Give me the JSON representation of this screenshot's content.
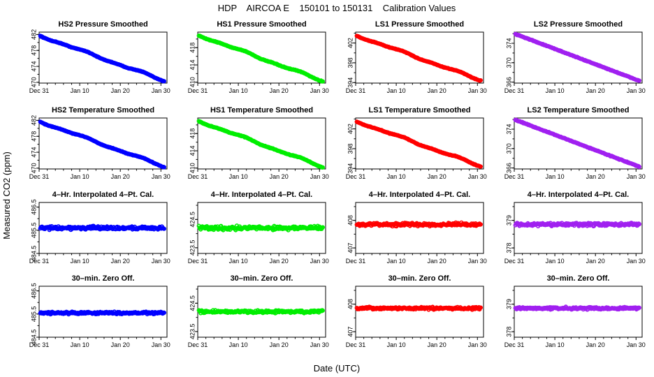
{
  "figure": {
    "title": "HDP    AIRCOA E    150101 to 150131    Calibration Values",
    "xlabel": "Date (UTC)",
    "ylabel": "Measured CO2 (ppm)"
  },
  "chart_data": [
    {
      "type": "line",
      "title": "HS2 Pressure Smoothed",
      "color": "#0000ff",
      "trend": "smooth",
      "start": 481.8,
      "end": 470.3,
      "noise": 0.15,
      "ylim": [
        469.8,
        482.6
      ],
      "yticks": [
        470,
        474,
        478,
        482
      ],
      "xticks": [
        "Dec 31",
        "Jan 10",
        "Jan 20",
        "Jan 30"
      ],
      "xlim": [
        0,
        31.5
      ]
    },
    {
      "type": "line",
      "title": "HS1 Pressure Smoothed",
      "color": "#00ee00",
      "trend": "smooth",
      "start": 421.0,
      "end": 410.2,
      "noise": 0.15,
      "ylim": [
        409.8,
        421.6
      ],
      "yticks": [
        410,
        414,
        418
      ],
      "xticks": [
        "Dec 31",
        "Jan 10",
        "Jan 20",
        "Jan 30"
      ],
      "xlim": [
        0,
        31.5
      ]
    },
    {
      "type": "line",
      "title": "LS1 Pressure Smoothed",
      "color": "#ff0000",
      "trend": "smooth",
      "start": 403.6,
      "end": 394.4,
      "noise": 0.12,
      "ylim": [
        393.9,
        404.2
      ],
      "yticks": [
        394,
        398,
        402
      ],
      "xticks": [
        "Dec 31",
        "Jan 10",
        "Jan 20",
        "Jan 30"
      ],
      "xlim": [
        0,
        31.5
      ]
    },
    {
      "type": "line",
      "title": "LS2 Pressure Smoothed",
      "color": "#a020f0",
      "trend": "linear",
      "start": 376.0,
      "end": 366.2,
      "noise": 0.12,
      "ylim": [
        365.8,
        376.3
      ],
      "yticks": [
        366,
        370,
        374
      ],
      "xticks": [
        "Dec 31",
        "Jan 10",
        "Jan 20",
        "Jan 30"
      ],
      "xlim": [
        0,
        31.5
      ]
    },
    {
      "type": "line",
      "title": "HS2 Temperature Smoothed",
      "color": "#0000ff",
      "trend": "smooth",
      "start": 481.8,
      "end": 470.3,
      "noise": 0.15,
      "ylim": [
        469.8,
        482.6
      ],
      "yticks": [
        470,
        474,
        478,
        482
      ],
      "xticks": [
        "Dec 31",
        "Jan 10",
        "Jan 20",
        "Jan 30"
      ],
      "xlim": [
        0,
        31.5
      ]
    },
    {
      "type": "line",
      "title": "HS1 Temperature Smoothed",
      "color": "#00ee00",
      "trend": "smooth",
      "start": 421.0,
      "end": 410.2,
      "noise": 0.15,
      "ylim": [
        409.8,
        421.6
      ],
      "yticks": [
        410,
        414,
        418
      ],
      "xticks": [
        "Dec 31",
        "Jan 10",
        "Jan 20",
        "Jan 30"
      ],
      "xlim": [
        0,
        31.5
      ]
    },
    {
      "type": "line",
      "title": "LS1 Temperature Smoothed",
      "color": "#ff0000",
      "trend": "smooth",
      "start": 403.6,
      "end": 394.4,
      "noise": 0.12,
      "ylim": [
        393.9,
        404.2
      ],
      "yticks": [
        394,
        398,
        402
      ],
      "xticks": [
        "Dec 31",
        "Jan 10",
        "Jan 20",
        "Jan 30"
      ],
      "xlim": [
        0,
        31.5
      ]
    },
    {
      "type": "line",
      "title": "LS2 Temperature Smoothed",
      "color": "#a020f0",
      "trend": "linear",
      "start": 376.0,
      "end": 366.2,
      "noise": 0.12,
      "ylim": [
        365.8,
        376.3
      ],
      "yticks": [
        366,
        370,
        374
      ],
      "xticks": [
        "Dec 31",
        "Jan 10",
        "Jan 20",
        "Jan 30"
      ],
      "xlim": [
        0,
        31.5
      ]
    },
    {
      "type": "scatter",
      "title": "4–Hr. Interpolated 4–Pt. Cal.",
      "color": "#0000ff",
      "trend": "flat",
      "level": 485.6,
      "noise": 0.05,
      "ylim": [
        484.5,
        486.7
      ],
      "yticks": [
        484.5,
        485.5,
        486.5
      ],
      "xticks": [
        "Dec 31",
        "Jan 10",
        "Jan 20",
        "Jan 30"
      ],
      "xlim": [
        0,
        31.5
      ]
    },
    {
      "type": "scatter",
      "title": "4–Hr. Interpolated 4–Pt. Cal.",
      "color": "#00ee00",
      "trend": "flat",
      "level": 424.2,
      "noise": 0.05,
      "ylim": [
        423.3,
        425.1
      ],
      "yticks": [
        423.5,
        424.5
      ],
      "xticks": [
        "Dec 31",
        "Jan 10",
        "Jan 20",
        "Jan 30"
      ],
      "xlim": [
        0,
        31.5
      ]
    },
    {
      "type": "scatter",
      "title": "4–Hr. Interpolated 4–Pt. Cal.",
      "color": "#ff0000",
      "trend": "flat",
      "level": 407.85,
      "noise": 0.04,
      "ylim": [
        406.8,
        408.65
      ],
      "yticks": [
        407.0,
        408.0
      ],
      "xticks": [
        "Dec 31",
        "Jan 10",
        "Jan 20",
        "Jan 30"
      ],
      "xlim": [
        0,
        31.5
      ]
    },
    {
      "type": "scatter",
      "title": "4–Hr. Interpolated 4–Pt. Cal.",
      "color": "#a020f0",
      "trend": "flat",
      "level": 378.85,
      "noise": 0.04,
      "ylim": [
        377.8,
        379.65
      ],
      "yticks": [
        378.0,
        379.0
      ],
      "xticks": [
        "Dec 31",
        "Jan 10",
        "Jan 20",
        "Jan 30"
      ],
      "xlim": [
        0,
        31.5
      ]
    },
    {
      "type": "scatter",
      "title": "30–min. Zero Off.",
      "color": "#0000ff",
      "trend": "flat",
      "level": 485.55,
      "noise": 0.035,
      "ylim": [
        484.5,
        486.7
      ],
      "yticks": [
        484.5,
        485.5,
        486.5
      ],
      "xticks": [
        "Dec 31",
        "Jan 10",
        "Jan 20",
        "Jan 30"
      ],
      "xlim": [
        0,
        31.5
      ]
    },
    {
      "type": "scatter",
      "title": "30–min. Zero Off.",
      "color": "#00ee00",
      "trend": "flat",
      "level": 424.2,
      "noise": 0.035,
      "ylim": [
        423.3,
        425.1
      ],
      "yticks": [
        423.5,
        424.5
      ],
      "xticks": [
        "Dec 31",
        "Jan 10",
        "Jan 20",
        "Jan 30"
      ],
      "xlim": [
        0,
        31.5
      ]
    },
    {
      "type": "scatter",
      "title": "30–min. Zero Off.",
      "color": "#ff0000",
      "trend": "flat",
      "level": 407.85,
      "noise": 0.03,
      "ylim": [
        406.8,
        408.65
      ],
      "yticks": [
        407.0,
        408.0
      ],
      "xticks": [
        "Dec 31",
        "Jan 10",
        "Jan 20",
        "Jan 30"
      ],
      "xlim": [
        0,
        31.5
      ]
    },
    {
      "type": "scatter",
      "title": "30–min. Zero Off.",
      "color": "#a020f0",
      "trend": "flat",
      "level": 378.85,
      "noise": 0.03,
      "ylim": [
        377.8,
        379.65
      ],
      "yticks": [
        378.0,
        379.0
      ],
      "xticks": [
        "Dec 31",
        "Jan 10",
        "Jan 20",
        "Jan 30"
      ],
      "xlim": [
        0,
        31.5
      ]
    }
  ]
}
